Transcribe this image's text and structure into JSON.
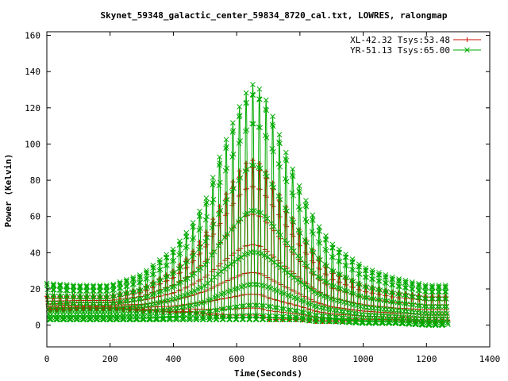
{
  "chart_data": {
    "type": "line",
    "title": "Skynet_59348_galactic_center_59834_8720_cal.txt, LOWRES, ralongmap",
    "xlabel": "Time(Seconds)",
    "ylabel": "Power (Kelvin)",
    "xlim": [
      0,
      1400
    ],
    "ylim": [
      -12,
      162
    ],
    "x_ticks": [
      0,
      200,
      400,
      600,
      800,
      1000,
      1200,
      1400
    ],
    "x_tick_labels": [
      "0",
      "200",
      "400",
      "600",
      "800",
      "1000",
      "1200",
      "1400"
    ],
    "y_ticks": [
      0,
      20,
      40,
      60,
      80,
      100,
      120,
      140,
      160
    ],
    "y_tick_labels": [
      "0",
      "20",
      "40",
      "60",
      "80",
      "100",
      "120",
      "140",
      "160"
    ],
    "grid": false,
    "legend_position": "top-right",
    "series": [
      {
        "name": "XL-42.32 Tsys:53.48",
        "color": "#cc1100",
        "marker": "plus",
        "scan_period_s": 21,
        "t_end_s": 1268,
        "x": [
          0,
          100,
          200,
          300,
          400,
          450,
          500,
          550,
          600,
          625,
          650,
          675,
          700,
          750,
          800,
          850,
          900,
          1000,
          1100,
          1200,
          1268
        ],
        "peak": [
          16,
          16,
          16,
          20,
          30,
          38,
          50,
          67,
          83,
          89,
          91,
          89,
          83,
          67,
          52,
          39,
          30,
          22,
          18,
          16,
          16
        ],
        "trough": [
          8,
          9,
          9,
          8,
          7,
          7,
          6,
          5,
          4,
          4,
          4,
          4,
          3,
          3,
          3,
          2,
          2,
          2,
          2,
          2,
          2
        ]
      },
      {
        "name": "YR-51.13 Tsys:65.00",
        "color": "#00aa00",
        "marker": "cross",
        "scan_period_s": 21,
        "t_end_s": 1268,
        "x": [
          0,
          100,
          200,
          300,
          400,
          450,
          500,
          550,
          600,
          625,
          650,
          675,
          700,
          750,
          800,
          850,
          900,
          1000,
          1100,
          1200,
          1268
        ],
        "peak": [
          23,
          22,
          22,
          28,
          42,
          53,
          68,
          95,
          117,
          127,
          133,
          130,
          122,
          98,
          76,
          57,
          45,
          32,
          26,
          22,
          22
        ],
        "trough": [
          3,
          3,
          3,
          3,
          3,
          3,
          3,
          3,
          3,
          3,
          3,
          3,
          3,
          3,
          3,
          2,
          2,
          1,
          1,
          0,
          0
        ]
      }
    ]
  }
}
